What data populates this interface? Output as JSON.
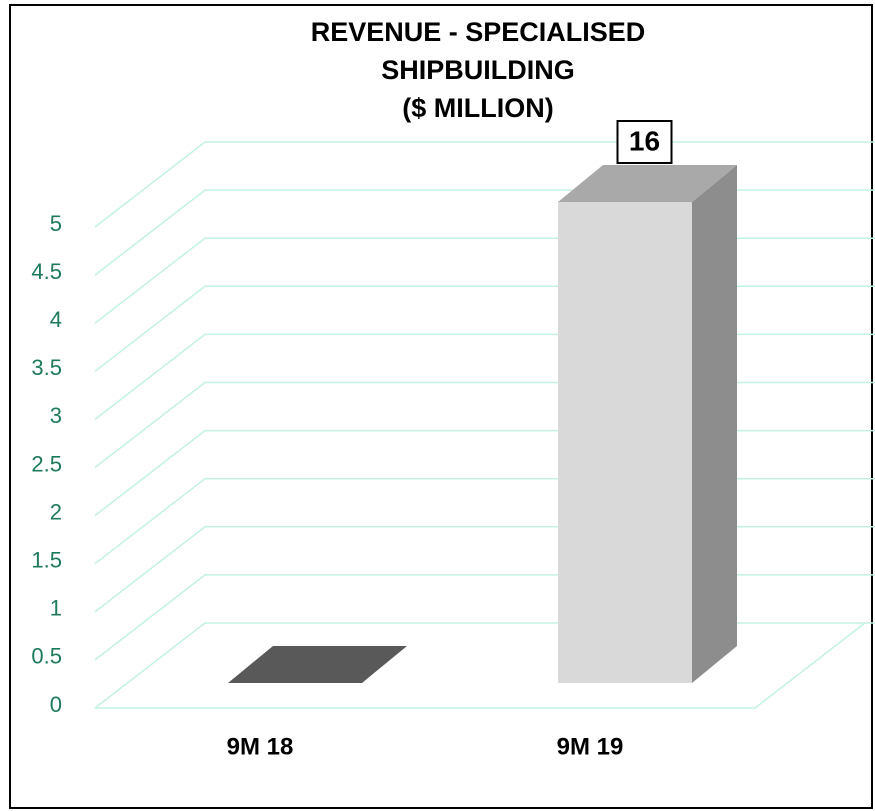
{
  "chart_data": {
    "type": "bar3d",
    "title": "REVENUE - SPECIALISED\nSHIPBUILDING\n($ MILLION)",
    "categories": [
      "9M 18",
      "9M 19"
    ],
    "values": [
      0,
      16
    ],
    "value_labels": [
      null,
      "16"
    ],
    "colors": [
      "#595959",
      "#d9d9d9"
    ],
    "ylim": [
      0,
      5
    ],
    "yticks": [
      0,
      0.5,
      1,
      1.5,
      2,
      2.5,
      3,
      3.5,
      4,
      4.5,
      5
    ],
    "grid": true
  }
}
